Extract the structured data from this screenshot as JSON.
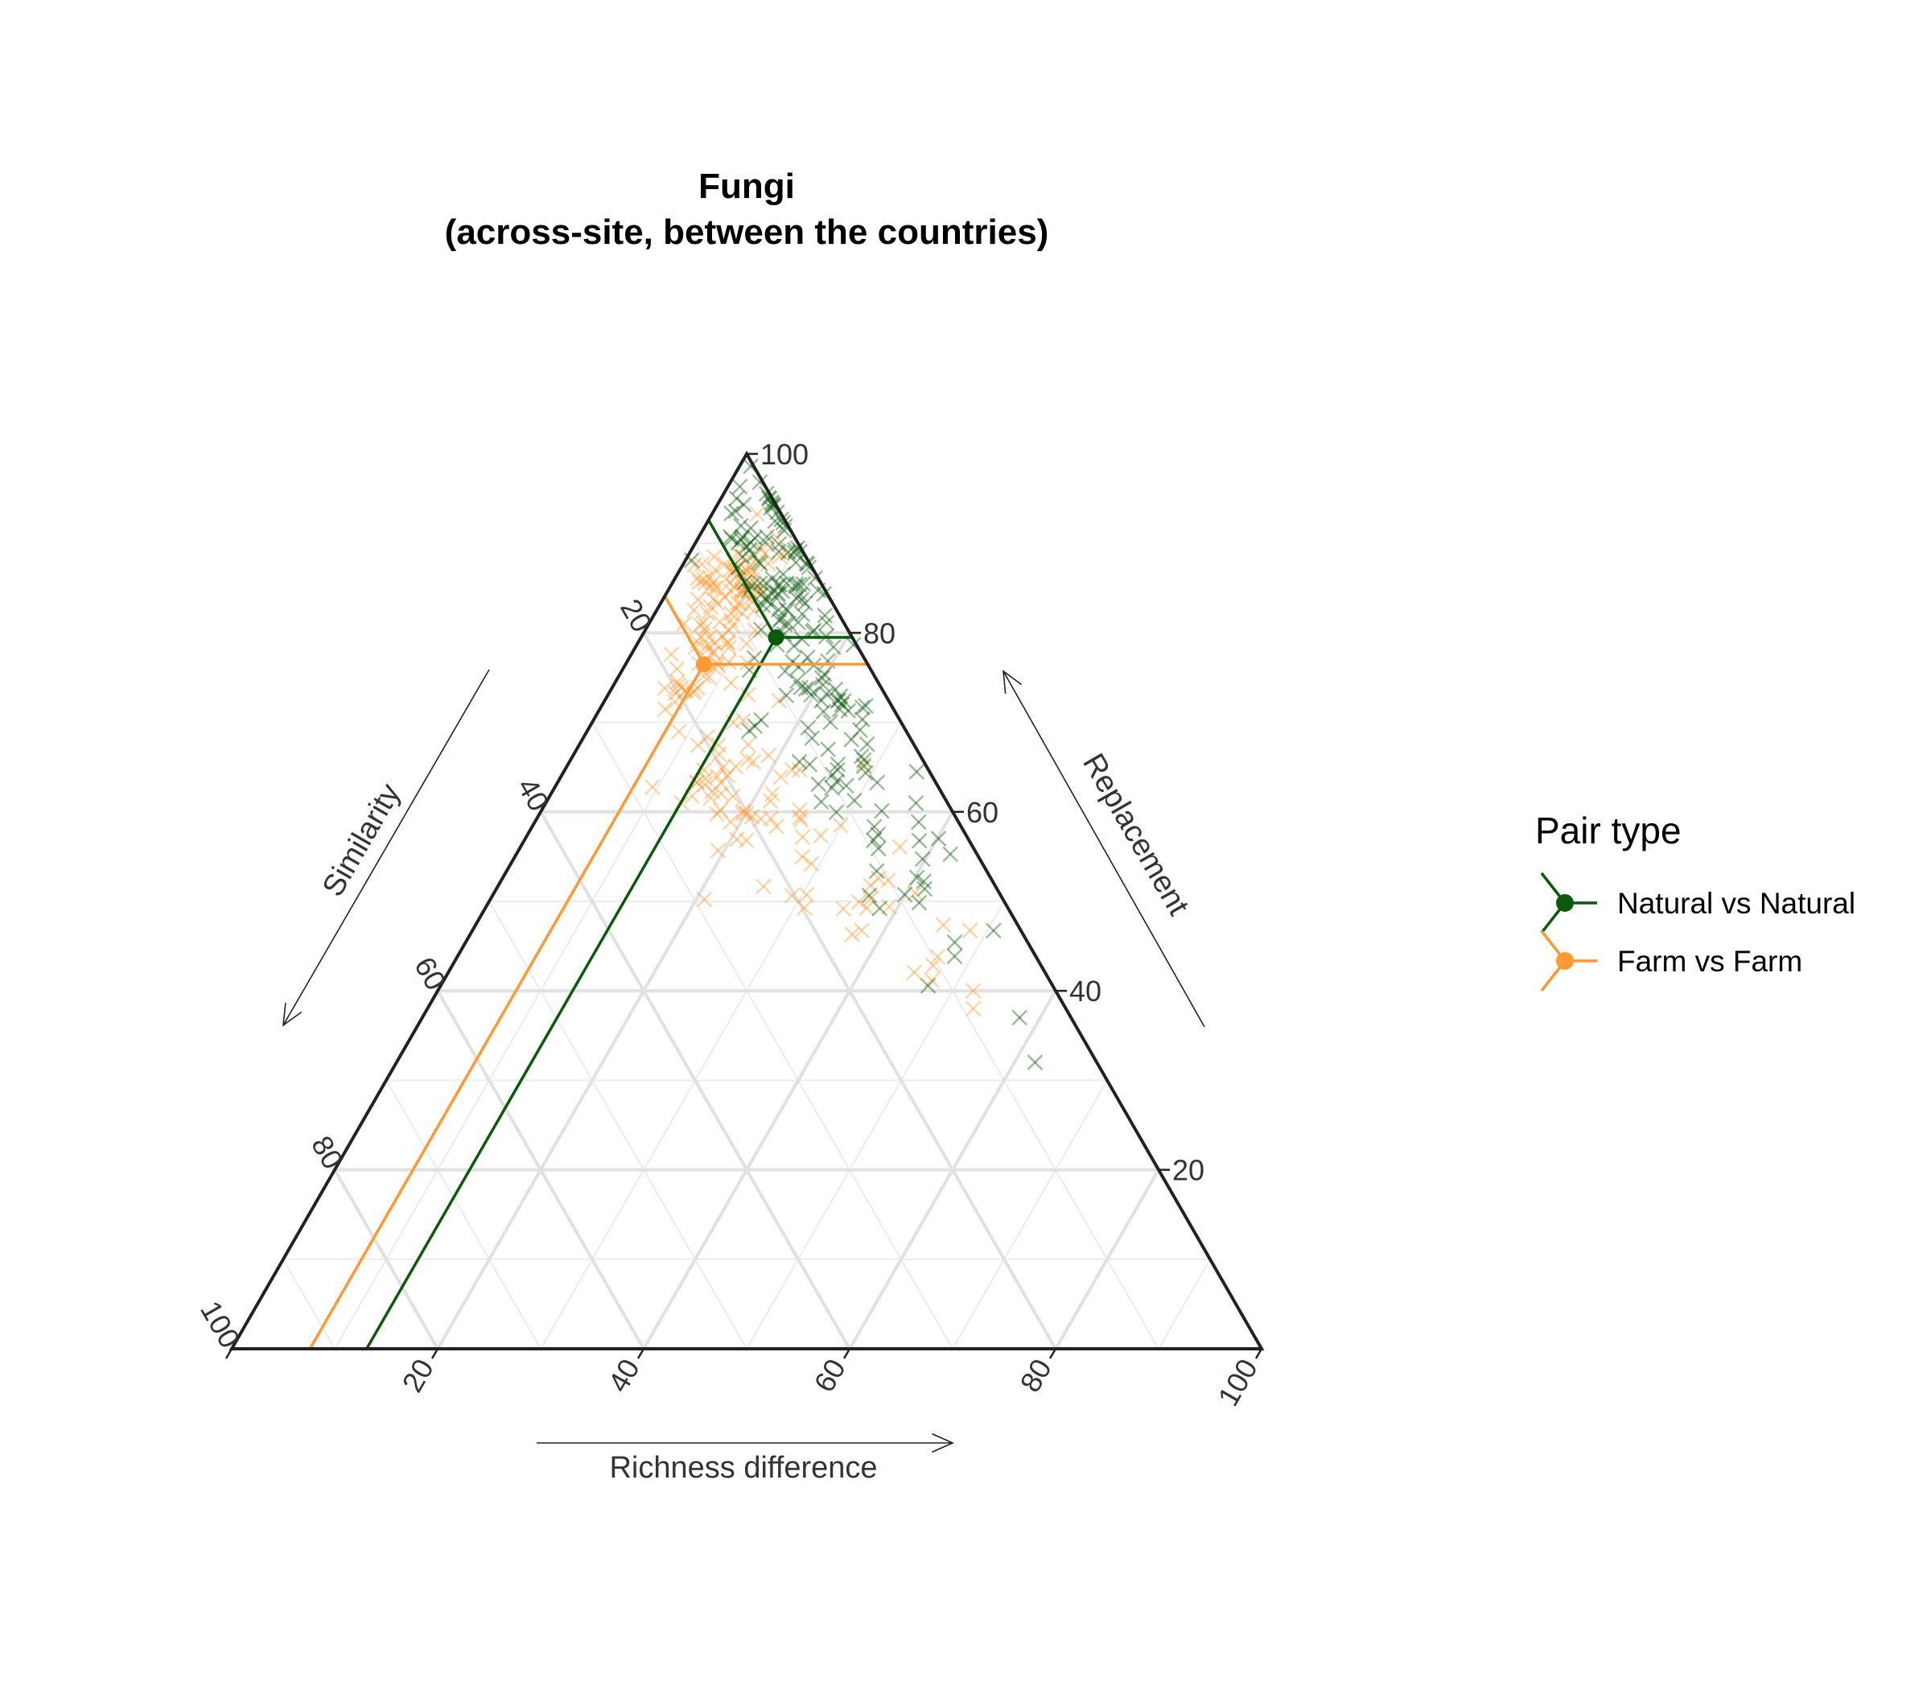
{
  "chart_data": {
    "type": "scatter",
    "subtype": "ternary",
    "title": "Fungi",
    "subtitle": "(across-site, between the countries)",
    "axes": {
      "top": {
        "label": "Replacement",
        "ticks": [
          "20",
          "40",
          "60",
          "80",
          "100"
        ]
      },
      "left": {
        "label": "Similarity",
        "ticks": [
          "20",
          "40",
          "60",
          "80",
          "100"
        ]
      },
      "right": {
        "label": "Richness difference",
        "ticks": [
          "20",
          "40",
          "60",
          "80",
          "100"
        ]
      }
    },
    "range": [
      0,
      100
    ],
    "grid": true,
    "legend": {
      "title": "Pair type",
      "position": "right"
    },
    "series": [
      {
        "name": "Natural vs Natural",
        "color": "#0b5a0b",
        "mean": {
          "replacement": 79.5,
          "similarity": 7.4,
          "richness_difference": 13.1
        },
        "cloud": [
          {
            "r": 96,
            "s": 1,
            "d": 3,
            "n": 10,
            "sr": 2,
            "sd": 2
          },
          {
            "r": 92,
            "s": 2,
            "d": 6,
            "n": 26,
            "sr": 2,
            "sd": 2
          },
          {
            "r": 87,
            "s": 3,
            "d": 10,
            "n": 34,
            "sr": 2.5,
            "sd": 2
          },
          {
            "r": 82,
            "s": 5,
            "d": 13,
            "n": 28,
            "sr": 2.5,
            "sd": 2
          },
          {
            "r": 76,
            "s": 6,
            "d": 18,
            "n": 24,
            "sr": 3,
            "sd": 2
          },
          {
            "r": 70,
            "s": 7,
            "d": 23,
            "n": 22,
            "sr": 2.5,
            "sd": 2
          },
          {
            "r": 64,
            "s": 8,
            "d": 28,
            "n": 16,
            "sr": 2.5,
            "sd": 2
          },
          {
            "r": 57,
            "s": 8,
            "d": 35,
            "n": 10,
            "sr": 2.5,
            "sd": 2
          },
          {
            "r": 50,
            "s": 9,
            "d": 41,
            "n": 10,
            "sr": 2.5,
            "sd": 2
          },
          {
            "r": 45,
            "s": 8,
            "d": 47,
            "n": 4,
            "sr": 2,
            "sd": 1.5
          }
        ],
        "extra_points": [
          {
            "r": 37,
            "s": 5,
            "d": 58
          },
          {
            "r": 32,
            "s": 6,
            "d": 62
          }
        ]
      },
      {
        "name": "Farm vs Farm",
        "color": "#ff9933",
        "mean": {
          "replacement": 76.5,
          "similarity": 15.9,
          "richness_difference": 7.6
        },
        "cloud": [
          {
            "r": 90,
            "s": 4,
            "d": 6,
            "n": 6,
            "sr": 2,
            "sd": 2
          },
          {
            "r": 87,
            "s": 8,
            "d": 5,
            "n": 22,
            "sr": 2,
            "sd": 2
          },
          {
            "r": 84,
            "s": 10,
            "d": 6,
            "n": 30,
            "sr": 2.5,
            "sd": 2
          },
          {
            "r": 80,
            "s": 13,
            "d": 7,
            "n": 26,
            "sr": 2.5,
            "sd": 2
          },
          {
            "r": 76,
            "s": 16,
            "d": 8,
            "n": 22,
            "sr": 2.5,
            "sd": 2
          },
          {
            "r": 69,
            "s": 18,
            "d": 13,
            "n": 14,
            "sr": 3,
            "sd": 3
          },
          {
            "r": 63,
            "s": 20,
            "d": 17,
            "n": 24,
            "sr": 2.5,
            "sd": 3
          },
          {
            "r": 60,
            "s": 18,
            "d": 22,
            "n": 18,
            "sr": 2.5,
            "sd": 3
          },
          {
            "r": 54,
            "s": 17,
            "d": 29,
            "n": 8,
            "sr": 2.5,
            "sd": 2.5
          },
          {
            "r": 50,
            "s": 13,
            "d": 37,
            "n": 12,
            "sr": 2.5,
            "sd": 2
          },
          {
            "r": 44,
            "s": 10,
            "d": 46,
            "n": 6,
            "sr": 2,
            "sd": 2
          }
        ],
        "extra_points": [
          {
            "r": 40,
            "s": 8,
            "d": 52
          },
          {
            "r": 38,
            "s": 9,
            "d": 53
          }
        ]
      }
    ]
  }
}
